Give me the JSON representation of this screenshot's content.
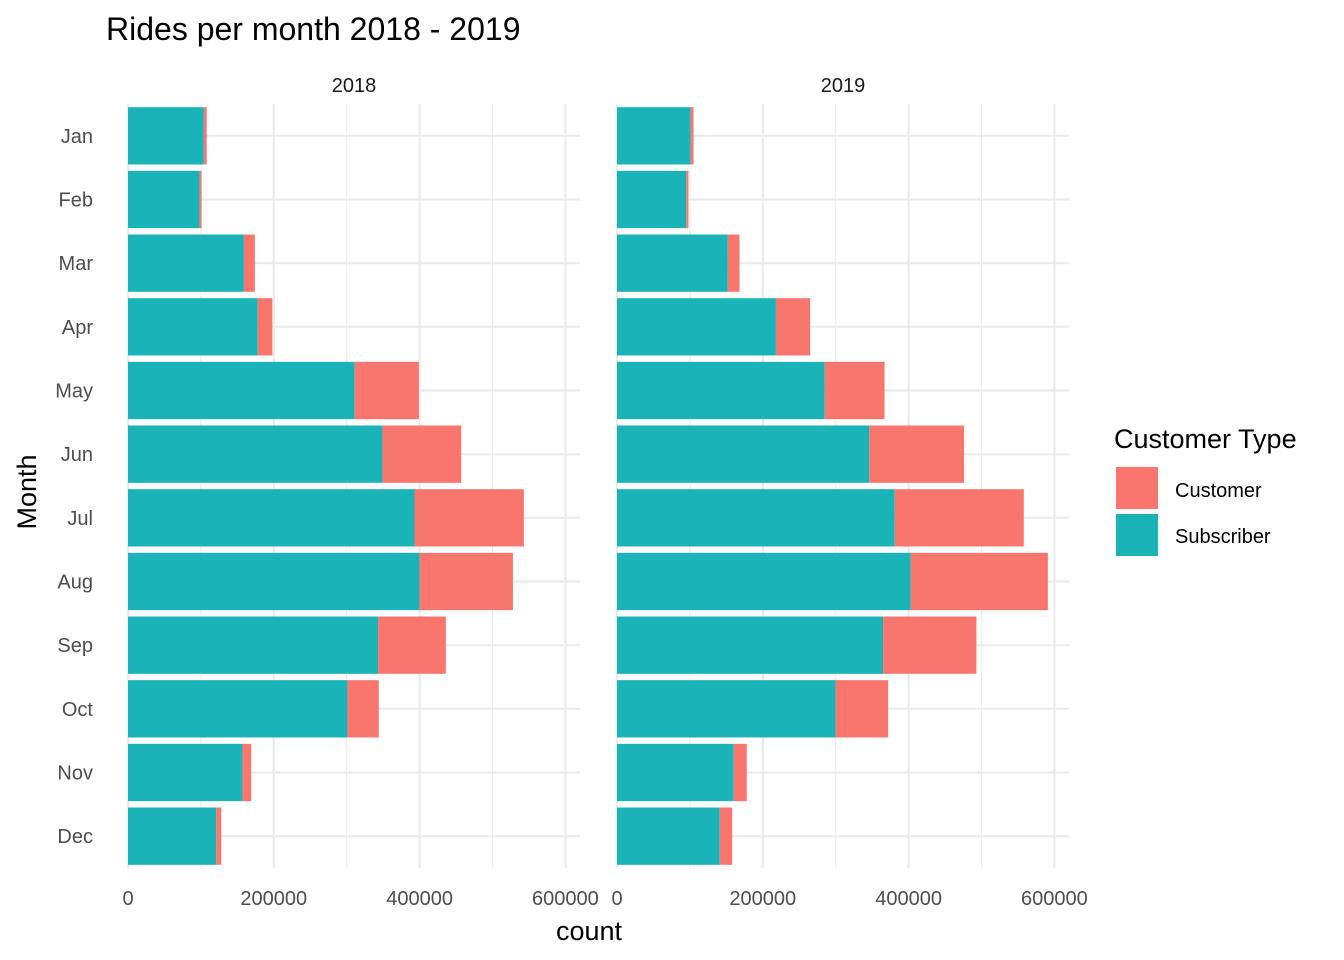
{
  "chart_data": {
    "type": "bar",
    "orientation": "horizontal",
    "stacked": true,
    "title": "Rides per month 2018 - 2019",
    "xlabel": "count",
    "ylabel": "Month",
    "categories": [
      "Jan",
      "Feb",
      "Mar",
      "Apr",
      "May",
      "Jun",
      "Jul",
      "Aug",
      "Sep",
      "Oct",
      "Nov",
      "Dec"
    ],
    "xlim": [
      0,
      620000
    ],
    "x_ticks": [
      0,
      200000,
      400000,
      600000
    ],
    "x_tick_labels": [
      "0",
      "200000",
      "400000",
      "600000"
    ],
    "grid": true,
    "legend": {
      "title": "Customer Type",
      "position": "right",
      "entries": [
        {
          "name": "Customer",
          "color": "#F8766D"
        },
        {
          "name": "Subscriber",
          "color": "#00BFC4"
        }
      ]
    },
    "colors": {
      "Customer": "#F8766D",
      "Subscriber": "#1AB3B7"
    },
    "facets": [
      {
        "label": "2018",
        "series": [
          {
            "name": "Subscriber",
            "values": [
              104000,
              98000,
              159000,
              178000,
              311000,
              349000,
              393000,
              400000,
              343000,
              301000,
              157000,
              121000
            ]
          },
          {
            "name": "Customer",
            "values": [
              4000,
              3000,
              15000,
              20000,
              88000,
              108000,
              150000,
              128000,
              93000,
              43000,
              12000,
              7000
            ]
          }
        ]
      },
      {
        "label": "2019",
        "series": [
          {
            "name": "Subscriber",
            "values": [
              101000,
              95000,
              152000,
              218000,
              285000,
              346000,
              381000,
              403000,
              365000,
              300000,
              160000,
              141000
            ]
          },
          {
            "name": "Customer",
            "values": [
              4000,
              3000,
              16000,
              47000,
              82000,
              130000,
              177000,
              188000,
              128000,
              72000,
              18000,
              17000
            ]
          }
        ]
      }
    ]
  }
}
